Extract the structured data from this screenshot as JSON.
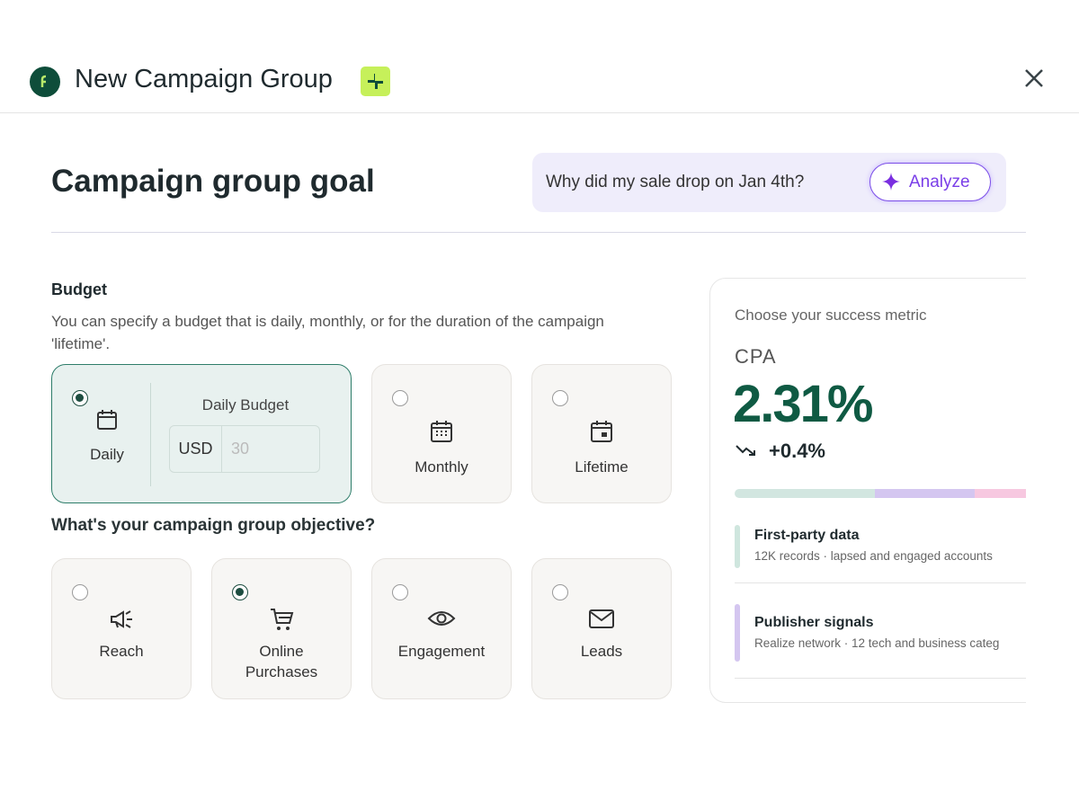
{
  "header": {
    "title": "New Campaign Group"
  },
  "section": {
    "title": "Campaign group goal"
  },
  "ai_prompt": {
    "question": "Why did my sale drop on Jan 4th?",
    "button": "Analyze"
  },
  "budget": {
    "label": "Budget",
    "description": "You can specify a budget that is daily, monthly, or for the duration of the campaign 'lifetime'.",
    "options": [
      {
        "label": "Daily",
        "selected": true
      },
      {
        "label": "Monthly",
        "selected": false
      },
      {
        "label": "Lifetime",
        "selected": false
      }
    ],
    "daily_budget": {
      "label": "Daily Budget",
      "currency": "USD",
      "placeholder": "30"
    }
  },
  "objective": {
    "label": "What's your campaign group objective?",
    "options": [
      {
        "label": "Reach",
        "selected": false
      },
      {
        "label": "Online Purchases",
        "selected": true
      },
      {
        "label": "Engagement",
        "selected": false
      },
      {
        "label": "Leads",
        "selected": false
      }
    ]
  },
  "metric_panel": {
    "prompt": "Choose your success metric",
    "metric": "CPA",
    "value": "2.31%",
    "change": "+0.4%",
    "sources": [
      {
        "title": "First-party data",
        "detail": "12K records · lapsed and engaged accounts"
      },
      {
        "title": "Publisher signals",
        "detail": "Realize network · 12 tech and business categ"
      }
    ]
  }
}
